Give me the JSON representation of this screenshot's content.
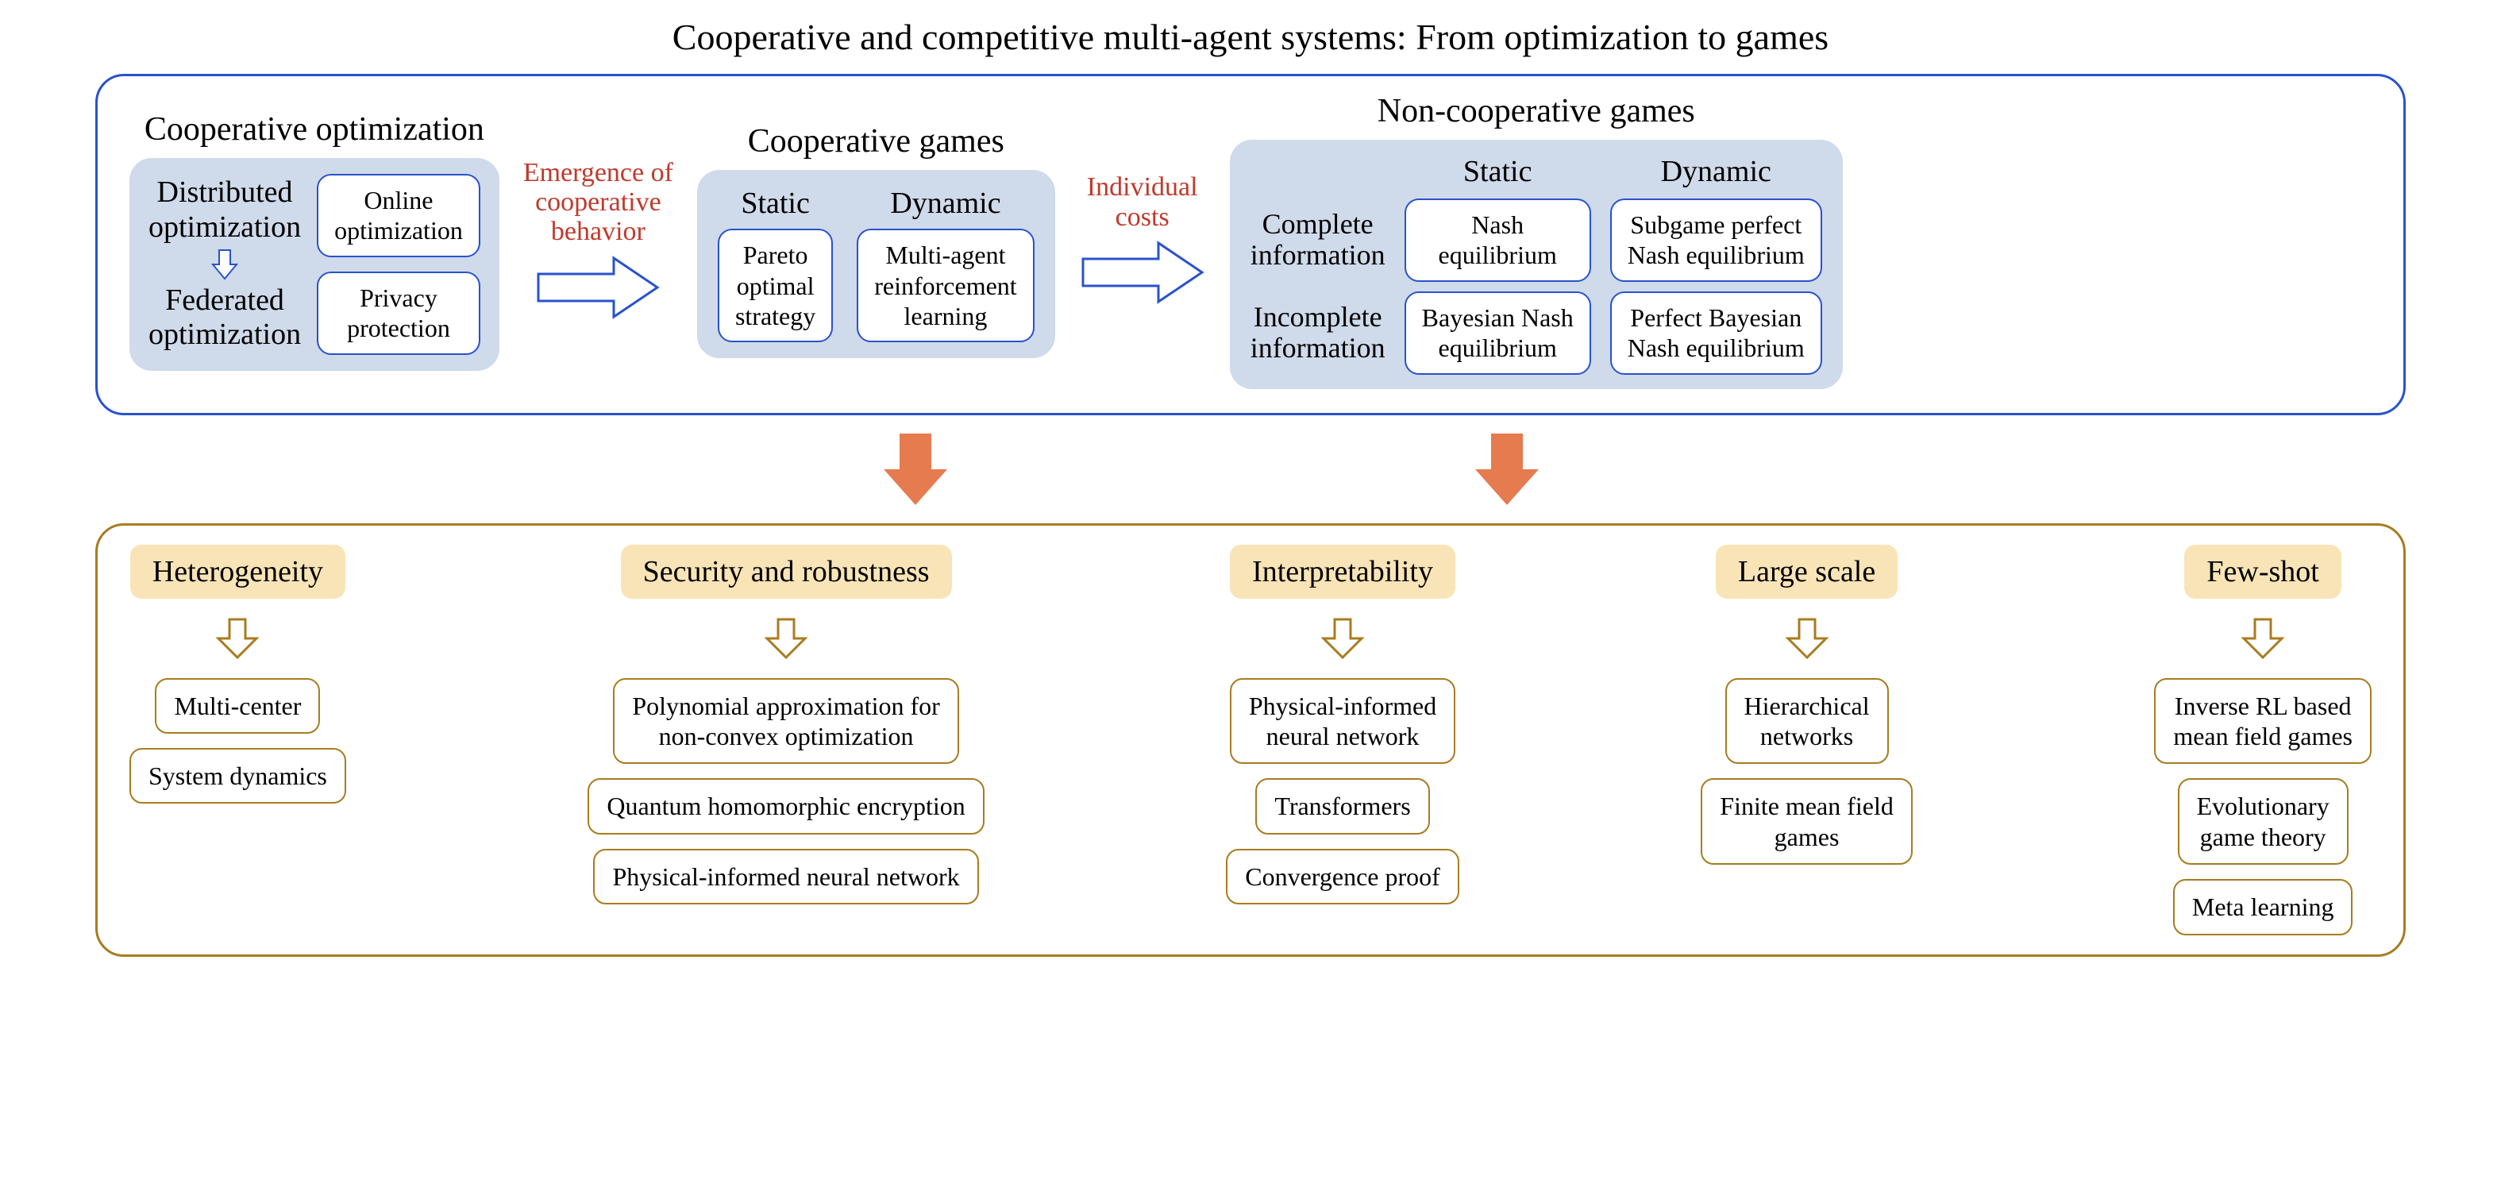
{
  "colors": {
    "blue_border": "#2952cc",
    "blue_panel_bg": "#cfdaea",
    "ochre_border": "#a87c1f",
    "yellow_bg": "#f9e4b7",
    "orange_arrow": "#e67b4f",
    "red_text": "#c0392b",
    "white": "#ffffff",
    "black": "#000000"
  },
  "title": "Cooperative and competitive multi-agent systems: From optimization to games",
  "top": {
    "coop_opt": {
      "title": "Cooperative optimization",
      "distributed": "Distributed\noptimization",
      "federated": "Federated\noptimization",
      "boxes": [
        "Online\noptimization",
        "Privacy\nprotection"
      ]
    },
    "annot1": "Emergence of\ncooperative\nbehavior",
    "coop_games": {
      "title": "Cooperative games",
      "static_head": "Static",
      "dynamic_head": "Dynamic",
      "static_box": "Pareto\noptimal\nstrategy",
      "dynamic_box": "Multi-agent\nreinforcement\nlearning"
    },
    "annot2": "Individual\ncosts",
    "noncoop": {
      "title": "Non-cooperative games",
      "static_head": "Static",
      "dynamic_head": "Dynamic",
      "complete_label": "Complete\ninformation",
      "incomplete_label": "Incomplete\ninformation",
      "nash": "Nash\nequilibrium",
      "subgame": "Subgame perfect\nNash equilibrium",
      "bayes": "Bayesian Nash\nequilibrium",
      "perfect_bayes": "Perfect Bayesian\nNash equilibrium"
    }
  },
  "bottom": {
    "cols": [
      {
        "tag": "Heterogeneity",
        "items": [
          "Multi-center",
          "System dynamics"
        ]
      },
      {
        "tag": "Security and robustness",
        "items": [
          "Polynomial approximation for\nnon-convex optimization",
          "Quantum homomorphic encryption",
          "Physical-informed neural network"
        ]
      },
      {
        "tag": "Interpretability",
        "items": [
          "Physical-informed\nneural network",
          "Transformers",
          "Convergence proof"
        ]
      },
      {
        "tag": "Large scale",
        "items": [
          "Hierarchical\nnetworks",
          "Finite mean field\ngames"
        ]
      },
      {
        "tag": "Few-shot",
        "items": [
          "Inverse RL based\nmean field games",
          "Evolutionary\ngame theory",
          "Meta learning"
        ]
      }
    ]
  }
}
